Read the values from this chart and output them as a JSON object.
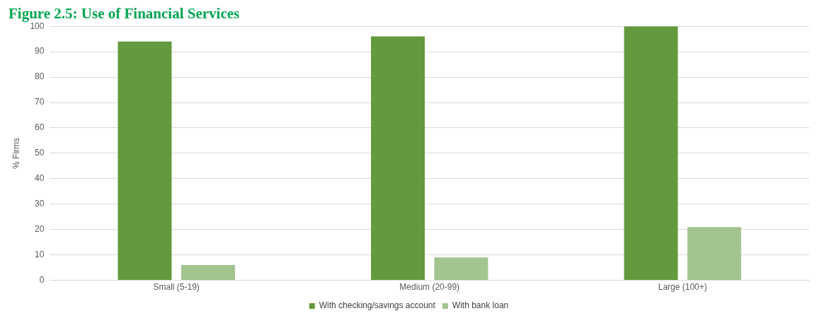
{
  "chart_data": {
    "type": "bar",
    "title": "Figure 2.5: Use of Financial Services",
    "ylabel": "% Firms",
    "categories": [
      "Small (5-19)",
      "Medium (20-99)",
      "Large (100+)"
    ],
    "series": [
      {
        "name": "With checking/savings account",
        "color": "#629a3d",
        "values": [
          94,
          96,
          100
        ]
      },
      {
        "name": "With bank loan",
        "color": "#a3c48f",
        "values": [
          6,
          9,
          21
        ]
      }
    ],
    "ylim": [
      0,
      100
    ],
    "yticks": [
      0,
      10,
      20,
      30,
      40,
      50,
      60,
      70,
      80,
      90,
      100
    ],
    "grid": "y",
    "legend": "bottom"
  }
}
